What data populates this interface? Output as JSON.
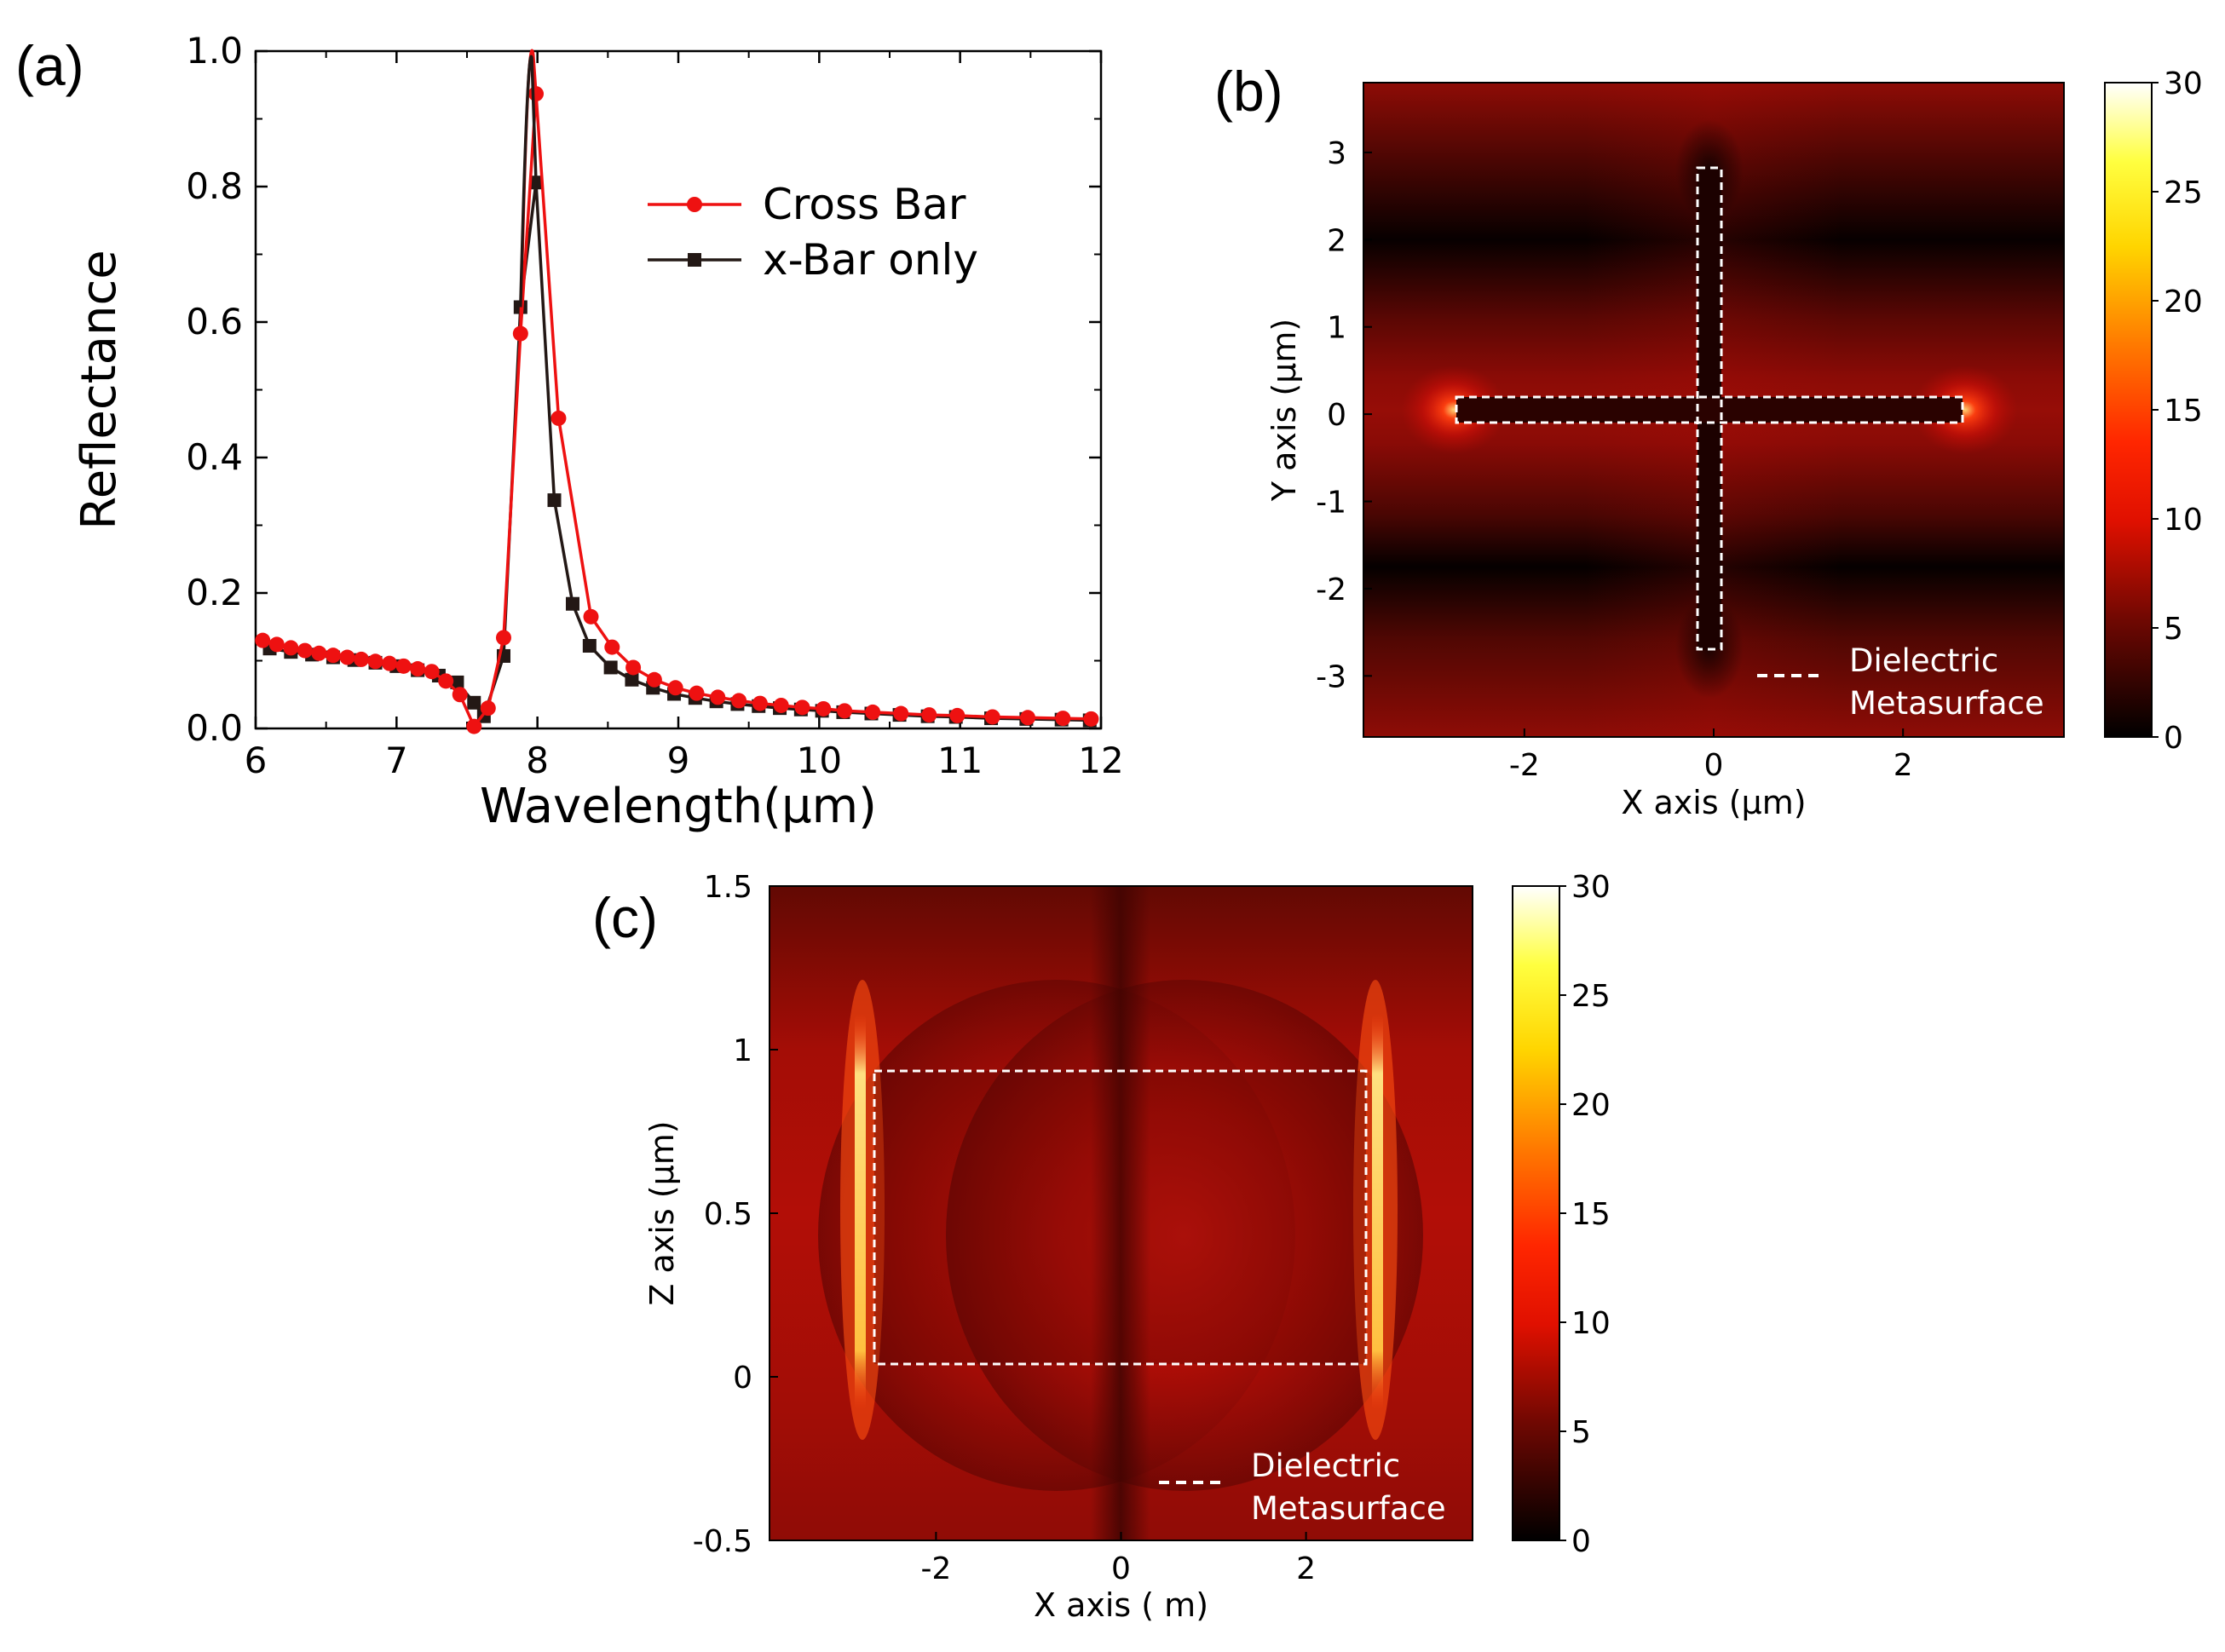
{
  "chart_data": [
    {
      "panel": "(a)",
      "type": "line",
      "xlabel": "Wavelength(μm)",
      "ylabel": "Reflectance",
      "xlim": [
        6,
        12
      ],
      "ylim": [
        0,
        1
      ],
      "xticks": [
        6,
        7,
        8,
        9,
        10,
        11,
        12
      ],
      "yticks": [
        0.0,
        0.2,
        0.4,
        0.6,
        0.8,
        1.0
      ],
      "xtick_labels": [
        "6",
        "7",
        "8",
        "9",
        "10",
        "11",
        "12"
      ],
      "ytick_labels": [
        "0.0",
        "0.2",
        "0.4",
        "0.6",
        "0.8",
        "1.0"
      ],
      "legend": "upper-right",
      "series": [
        {
          "name": "Cross Bar",
          "color": "#ee1111",
          "marker": "circle",
          "x": [
            6.05,
            6.15,
            6.25,
            6.35,
            6.45,
            6.55,
            6.65,
            6.75,
            6.85,
            6.95,
            7.05,
            7.15,
            7.25,
            7.35,
            7.45,
            7.55,
            7.65,
            7.76,
            7.88,
            7.99,
            8.15,
            8.38,
            8.53,
            8.68,
            8.83,
            8.98,
            9.13,
            9.28,
            9.43,
            9.58,
            9.73,
            9.88,
            10.03,
            10.18,
            10.38,
            10.58,
            10.78,
            10.98,
            11.23,
            11.48,
            11.73,
            11.93
          ],
          "y": [
            0.13,
            0.124,
            0.119,
            0.115,
            0.111,
            0.108,
            0.105,
            0.102,
            0.099,
            0.096,
            0.092,
            0.088,
            0.084,
            0.07,
            0.05,
            0.003,
            0.03,
            0.134,
            0.583,
            0.937,
            0.458,
            0.165,
            0.12,
            0.09,
            0.072,
            0.06,
            0.052,
            0.046,
            0.041,
            0.037,
            0.034,
            0.031,
            0.029,
            0.026,
            0.024,
            0.022,
            0.02,
            0.019,
            0.017,
            0.016,
            0.015,
            0.014
          ]
        },
        {
          "name": "x-Bar only",
          "color": "#231815",
          "marker": "square",
          "x": [
            6.1,
            6.25,
            6.4,
            6.55,
            6.7,
            6.85,
            7.0,
            7.15,
            7.3,
            7.43,
            7.55,
            7.62,
            7.76,
            7.88,
            7.99,
            8.12,
            8.25,
            8.37,
            8.52,
            8.67,
            8.82,
            8.97,
            9.12,
            9.27,
            9.42,
            9.57,
            9.72,
            9.87,
            10.02,
            10.17,
            10.37,
            10.57,
            10.77,
            10.97,
            11.22,
            11.47,
            11.72,
            11.92
          ],
          "y": [
            0.118,
            0.113,
            0.109,
            0.105,
            0.101,
            0.097,
            0.092,
            0.086,
            0.078,
            0.068,
            0.038,
            0.018,
            0.107,
            0.622,
            0.806,
            0.337,
            0.184,
            0.122,
            0.09,
            0.072,
            0.06,
            0.051,
            0.045,
            0.04,
            0.036,
            0.033,
            0.03,
            0.028,
            0.026,
            0.024,
            0.022,
            0.02,
            0.018,
            0.017,
            0.015,
            0.014,
            0.013,
            0.012
          ]
        }
      ]
    },
    {
      "panel": "(b)",
      "type": "heatmap",
      "xlabel": "X axis (μm)",
      "ylabel": "Y axis (μm)",
      "xlim": [
        -3.7,
        3.7
      ],
      "ylim": [
        -3.7,
        3.8
      ],
      "xticks": [
        -2,
        0,
        2
      ],
      "yticks": [
        -3,
        -2,
        -1,
        0,
        1,
        2,
        3
      ],
      "xtick_labels": [
        "-2",
        "0",
        "2"
      ],
      "ytick_labels": [
        "-3",
        "-2",
        "-1",
        "0",
        "1",
        "2",
        "3"
      ],
      "colorbar_range": [
        0,
        30
      ],
      "colorbar_ticks": [
        "0",
        "5",
        "10",
        "15",
        "20",
        "25",
        "30"
      ],
      "legend_label_1": "Dielectric",
      "legend_label_2": "Metasurface",
      "structure": "cross"
    },
    {
      "panel": "(c)",
      "type": "heatmap",
      "xlabel": "X axis (  m)",
      "ylabel": "Z axis (μm)",
      "xlim": [
        -3.8,
        3.8
      ],
      "ylim": [
        -0.5,
        1.5
      ],
      "xticks": [
        -2,
        0,
        2
      ],
      "yticks": [
        -0.5,
        0,
        0.5,
        1,
        1.5
      ],
      "xtick_labels": [
        "-2",
        "0",
        "2"
      ],
      "ytick_labels": [
        "-0.5",
        "0",
        "0.5",
        "1",
        "1.5"
      ],
      "colorbar_range": [
        0,
        30
      ],
      "colorbar_ticks": [
        "0",
        "5",
        "10",
        "15",
        "20",
        "25",
        "30"
      ],
      "legend_label_1": "Dielectric",
      "legend_label_2": "Metasurface",
      "structure": "bar-section"
    }
  ]
}
